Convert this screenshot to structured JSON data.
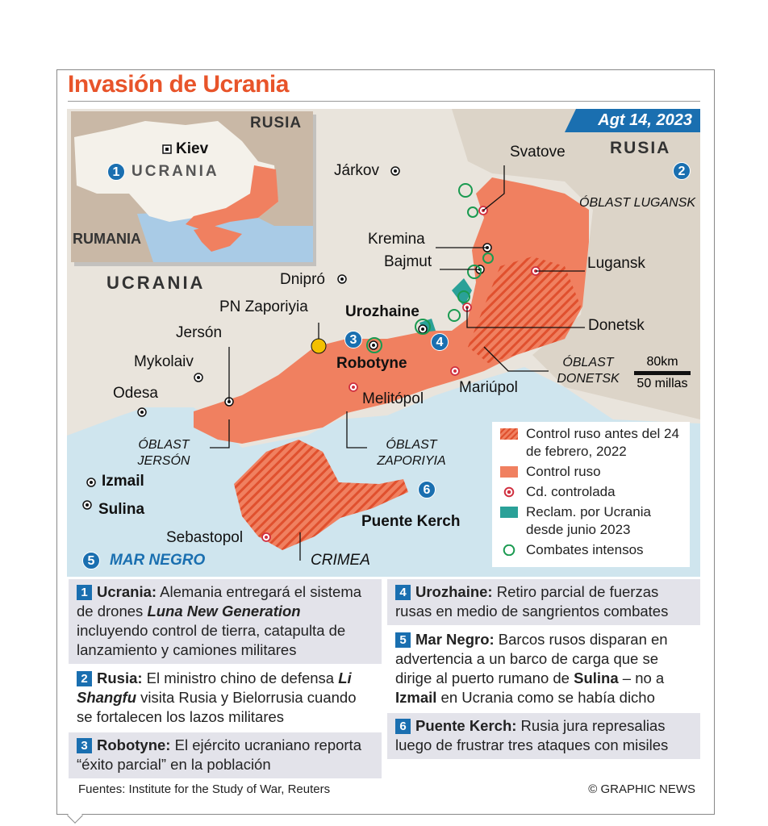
{
  "title": "Invasión de Ucrania",
  "date": "Agt 14, 2023",
  "colors": {
    "russian_control": "#f08060",
    "pre_2022_control": "#f08060 hatched",
    "city_controlled": "#d03040",
    "reclaimed": "#2aa198",
    "fighting": "#1a9a50",
    "accent_blue": "#1a6fb0",
    "title": "#e8542a"
  },
  "inset": {
    "russia": "RUSIA",
    "ukraine": "UCRANIA",
    "romania": "RUMANIA",
    "capital": "Kiev",
    "marker": "1"
  },
  "map": {
    "countries": {
      "russia": "RUSIA",
      "ukraine": "UCRANIA"
    },
    "regions": {
      "lugansk": "ÓBLAST LUGANSK",
      "donetsk": "ÓBLAST DONETSK",
      "kherson": "ÓBLAST JERSÓN",
      "zaporizhzhia": "ÓBLAST ZAPORIYIA",
      "crimea": "CRIMEA",
      "sea": "MAR NEGRO"
    },
    "cities": {
      "svatove": "Svatove",
      "kharkiv": "Járkov",
      "kremina": "Kremina",
      "bakhmut": "Bajmut",
      "luhansk": "Lugansk",
      "dnipro": "Dnipró",
      "npp": "PN Zaporiyia",
      "urozhaine": "Urozhaine",
      "donetsk": "Donetsk",
      "kherson": "Jersón",
      "robotyne": "Robotyne",
      "mykolaiv": "Mykolaiv",
      "mariupol": "Mariúpol",
      "odesa": "Odesa",
      "melitopol": "Melitópol",
      "izmail": "Izmail",
      "sulina": "Sulina",
      "kerch": "Puente Kerch",
      "sevastopol": "Sebastopol"
    },
    "markers": [
      "1",
      "2",
      "3",
      "4",
      "5",
      "6"
    ],
    "scale": {
      "km": "80km",
      "miles": "50 millas"
    }
  },
  "legend": [
    {
      "label": "Control ruso antes del 24 de febrero, 2022",
      "icon": "hatched-swatch"
    },
    {
      "label": "Control ruso",
      "icon": "coral-swatch"
    },
    {
      "label": "Cd. controlada",
      "icon": "red-ring-dot"
    },
    {
      "label": "Reclam. por Ucrania desde junio 2023",
      "icon": "teal-swatch"
    },
    {
      "label": "Combates intensos",
      "icon": "green-ring"
    }
  ],
  "notes": [
    {
      "n": "1",
      "parts": [
        {
          "t": "Ucrania:",
          "s": "b"
        },
        {
          "t": " Alemania entregará el sistema de drones ",
          "s": ""
        },
        {
          "t": "Luna New Generation",
          "s": "bi"
        },
        {
          "t": " incluyendo control de tierra, catapulta de lanzamiento y camiones militares",
          "s": ""
        }
      ]
    },
    {
      "n": "2",
      "parts": [
        {
          "t": "Rusia:",
          "s": "b"
        },
        {
          "t": " El ministro chino de defensa ",
          "s": ""
        },
        {
          "t": "Li Shangfu",
          "s": "bi"
        },
        {
          "t": " visita Rusia y Bielorrusia cuando se fortalecen los lazos militares",
          "s": ""
        }
      ]
    },
    {
      "n": "3",
      "parts": [
        {
          "t": "Robotyne:",
          "s": "b"
        },
        {
          "t": " El ejército ucraniano reporta “éxito parcial” en la población",
          "s": ""
        }
      ]
    },
    {
      "n": "4",
      "parts": [
        {
          "t": "Urozhaine:",
          "s": "b"
        },
        {
          "t": " Retiro parcial de fuerzas rusas en medio de sangrientos combates",
          "s": ""
        }
      ]
    },
    {
      "n": "5",
      "parts": [
        {
          "t": "Mar Negro:",
          "s": "b"
        },
        {
          "t": " Barcos rusos disparan en advertencia a un barco de carga que se dirige al puerto rumano de ",
          "s": ""
        },
        {
          "t": "Sulina",
          "s": "b"
        },
        {
          "t": " – no a ",
          "s": ""
        },
        {
          "t": "Izmail",
          "s": "b"
        },
        {
          "t": " en Ucrania como se había dicho",
          "s": ""
        }
      ]
    },
    {
      "n": "6",
      "parts": [
        {
          "t": "Puente Kerch:",
          "s": "b"
        },
        {
          "t": " Rusia jura represalias luego de frustrar tres ataques con misiles",
          "s": ""
        }
      ]
    }
  ],
  "footer": {
    "sources": "Fuentes: Institute for the Study of War, Reuters",
    "credit": "© GRAPHIC NEWS"
  }
}
